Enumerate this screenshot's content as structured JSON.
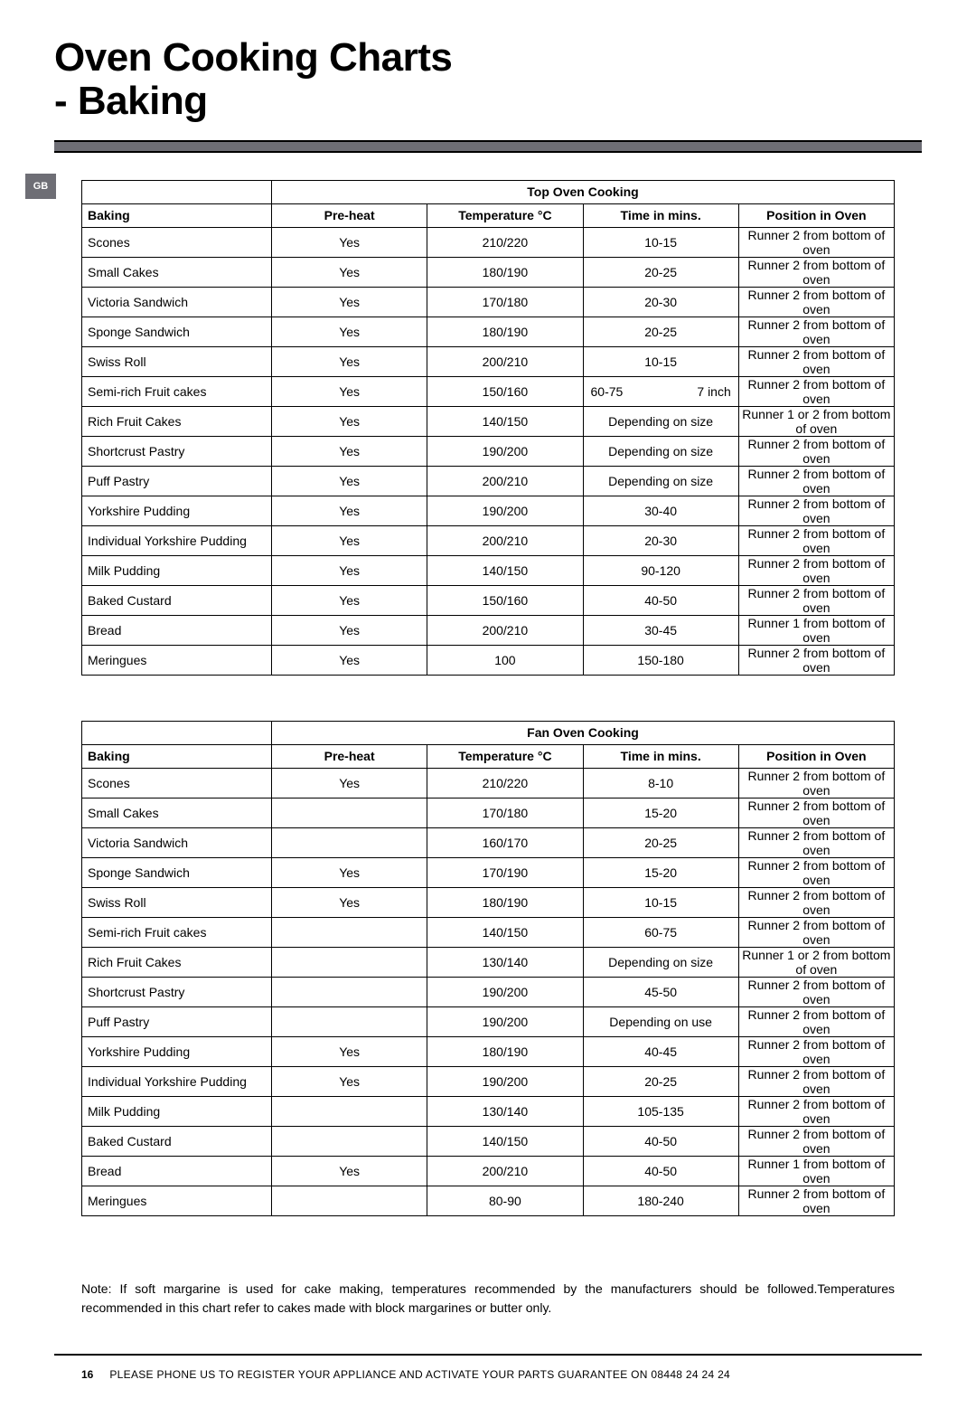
{
  "title_line1": "Oven Cooking Charts",
  "title_line2": "- Baking",
  "gb_tag": "GB",
  "tables": [
    {
      "group_title": "Top Oven Cooking",
      "headers": {
        "baking": "Baking",
        "preheat": "Pre-heat",
        "temp": "Temperature °C",
        "time": "Time in mins.",
        "pos": "Position in Oven"
      },
      "rows": [
        {
          "baking": "Scones",
          "preheat": "Yes",
          "temp": "210/220",
          "time": "10-15",
          "pos": "Runner 2 from bottom of oven"
        },
        {
          "baking": "Small Cakes",
          "preheat": "Yes",
          "temp": "180/190",
          "time": "20-25",
          "pos": "Runner 2 from bottom of oven"
        },
        {
          "baking": "Victoria Sandwich",
          "preheat": "Yes",
          "temp": "170/180",
          "time": "20-30",
          "pos": "Runner 2 from bottom of oven"
        },
        {
          "baking": "Sponge Sandwich",
          "preheat": "Yes",
          "temp": "180/190",
          "time": "20-25",
          "pos": "Runner 2 from bottom of oven"
        },
        {
          "baking": "Swiss Roll",
          "preheat": "Yes",
          "temp": "200/210",
          "time": "10-15",
          "pos": "Runner 2 from bottom of oven"
        },
        {
          "baking": "Semi-rich Fruit cakes",
          "preheat": "Yes",
          "temp": "150/160",
          "time_split": [
            "60-75",
            "7 inch"
          ],
          "pos": "Runner 2 from bottom of oven"
        },
        {
          "baking": "Rich Fruit Cakes",
          "preheat": "Yes",
          "temp": "140/150",
          "time": "Depending on size",
          "pos": "Runner 1 or 2 from bottom of oven"
        },
        {
          "baking": "Shortcrust Pastry",
          "preheat": "Yes",
          "temp": "190/200",
          "time": "Depending on size",
          "pos": "Runner 2 from bottom of oven"
        },
        {
          "baking": "Puff Pastry",
          "preheat": "Yes",
          "temp": "200/210",
          "time": "Depending on size",
          "pos": "Runner 2 from bottom of oven"
        },
        {
          "baking": "Yorkshire Pudding",
          "preheat": "Yes",
          "temp": "190/200",
          "time": "30-40",
          "pos": "Runner 2 from bottom of oven"
        },
        {
          "baking": "Individual Yorkshire Pudding",
          "preheat": "Yes",
          "temp": "200/210",
          "time": "20-30",
          "pos": "Runner 2 from bottom of oven"
        },
        {
          "baking": "Milk Pudding",
          "preheat": "Yes",
          "temp": "140/150",
          "time": "90-120",
          "pos": "Runner 2 from bottom of oven"
        },
        {
          "baking": "Baked Custard",
          "preheat": "Yes",
          "temp": "150/160",
          "time": "40-50",
          "pos": "Runner 2 from bottom of oven"
        },
        {
          "baking": "Bread",
          "preheat": "Yes",
          "temp": "200/210",
          "time": "30-45",
          "pos": "Runner 1 from bottom of oven"
        },
        {
          "baking": "Meringues",
          "preheat": "Yes",
          "temp": "100",
          "time": "150-180",
          "pos": "Runner 2 from bottom of oven"
        }
      ]
    },
    {
      "group_title": "Fan Oven Cooking",
      "headers": {
        "baking": "Baking",
        "preheat": "Pre-heat",
        "temp": "Temperature °C",
        "time": "Time in mins.",
        "pos": "Position in Oven"
      },
      "rows": [
        {
          "baking": "Scones",
          "preheat": "Yes",
          "temp": "210/220",
          "time": "8-10",
          "pos": "Runner 2 from bottom of oven"
        },
        {
          "baking": "Small Cakes",
          "preheat": "",
          "temp": "170/180",
          "time": "15-20",
          "pos": "Runner 2 from bottom of oven"
        },
        {
          "baking": "Victoria Sandwich",
          "preheat": "",
          "temp": "160/170",
          "time": "20-25",
          "pos": "Runner 2 from bottom of oven"
        },
        {
          "baking": "Sponge Sandwich",
          "preheat": "Yes",
          "temp": "170/190",
          "time": "15-20",
          "pos": "Runner 2 from bottom of oven"
        },
        {
          "baking": "Swiss Roll",
          "preheat": "Yes",
          "temp": "180/190",
          "time": "10-15",
          "pos": "Runner 2 from bottom of oven"
        },
        {
          "baking": "Semi-rich Fruit cakes",
          "preheat": "",
          "temp": "140/150",
          "time": "60-75",
          "pos": "Runner 2 from bottom of oven"
        },
        {
          "baking": "Rich Fruit Cakes",
          "preheat": "",
          "temp": "130/140",
          "time": "Depending on size",
          "pos": "Runner 1 or 2 from bottom of oven"
        },
        {
          "baking": "Shortcrust Pastry",
          "preheat": "",
          "temp": "190/200",
          "time": "45-50",
          "pos": "Runner 2 from bottom of oven"
        },
        {
          "baking": "Puff Pastry",
          "preheat": "",
          "temp": "190/200",
          "time": "Depending on use",
          "pos": "Runner 2 from bottom of oven"
        },
        {
          "baking": "Yorkshire Pudding",
          "preheat": "Yes",
          "temp": "180/190",
          "time": "40-45",
          "pos": "Runner 2 from bottom of oven"
        },
        {
          "baking": "Individual Yorkshire Pudding",
          "preheat": "Yes",
          "temp": "190/200",
          "time": "20-25",
          "pos": "Runner 2 from bottom of oven"
        },
        {
          "baking": "Milk Pudding",
          "preheat": "",
          "temp": "130/140",
          "time": "105-135",
          "pos": "Runner 2 from bottom of oven"
        },
        {
          "baking": "Baked Custard",
          "preheat": "",
          "temp": "140/150",
          "time": "40-50",
          "pos": "Runner 2 from bottom of oven"
        },
        {
          "baking": "Bread",
          "preheat": "Yes",
          "temp": "200/210",
          "time": "40-50",
          "pos": "Runner 1 from bottom of oven"
        },
        {
          "baking": "Meringues",
          "preheat": "",
          "temp": "80-90",
          "time": "180-240",
          "pos": "Runner 2 from bottom of oven"
        }
      ]
    }
  ],
  "note": "Note: If soft margarine is used for cake making, temperatures recommended by the manufacturers should be followed.Temperatures recommended in this chart refer to cakes made with block margarines or butter only.",
  "page_number": "16",
  "footer_text": "PLEASE PHONE US TO REGISTER YOUR APPLIANCE  AND ACTIVATE YOUR PARTS GUARANTEE ON 08448 24 24 24"
}
